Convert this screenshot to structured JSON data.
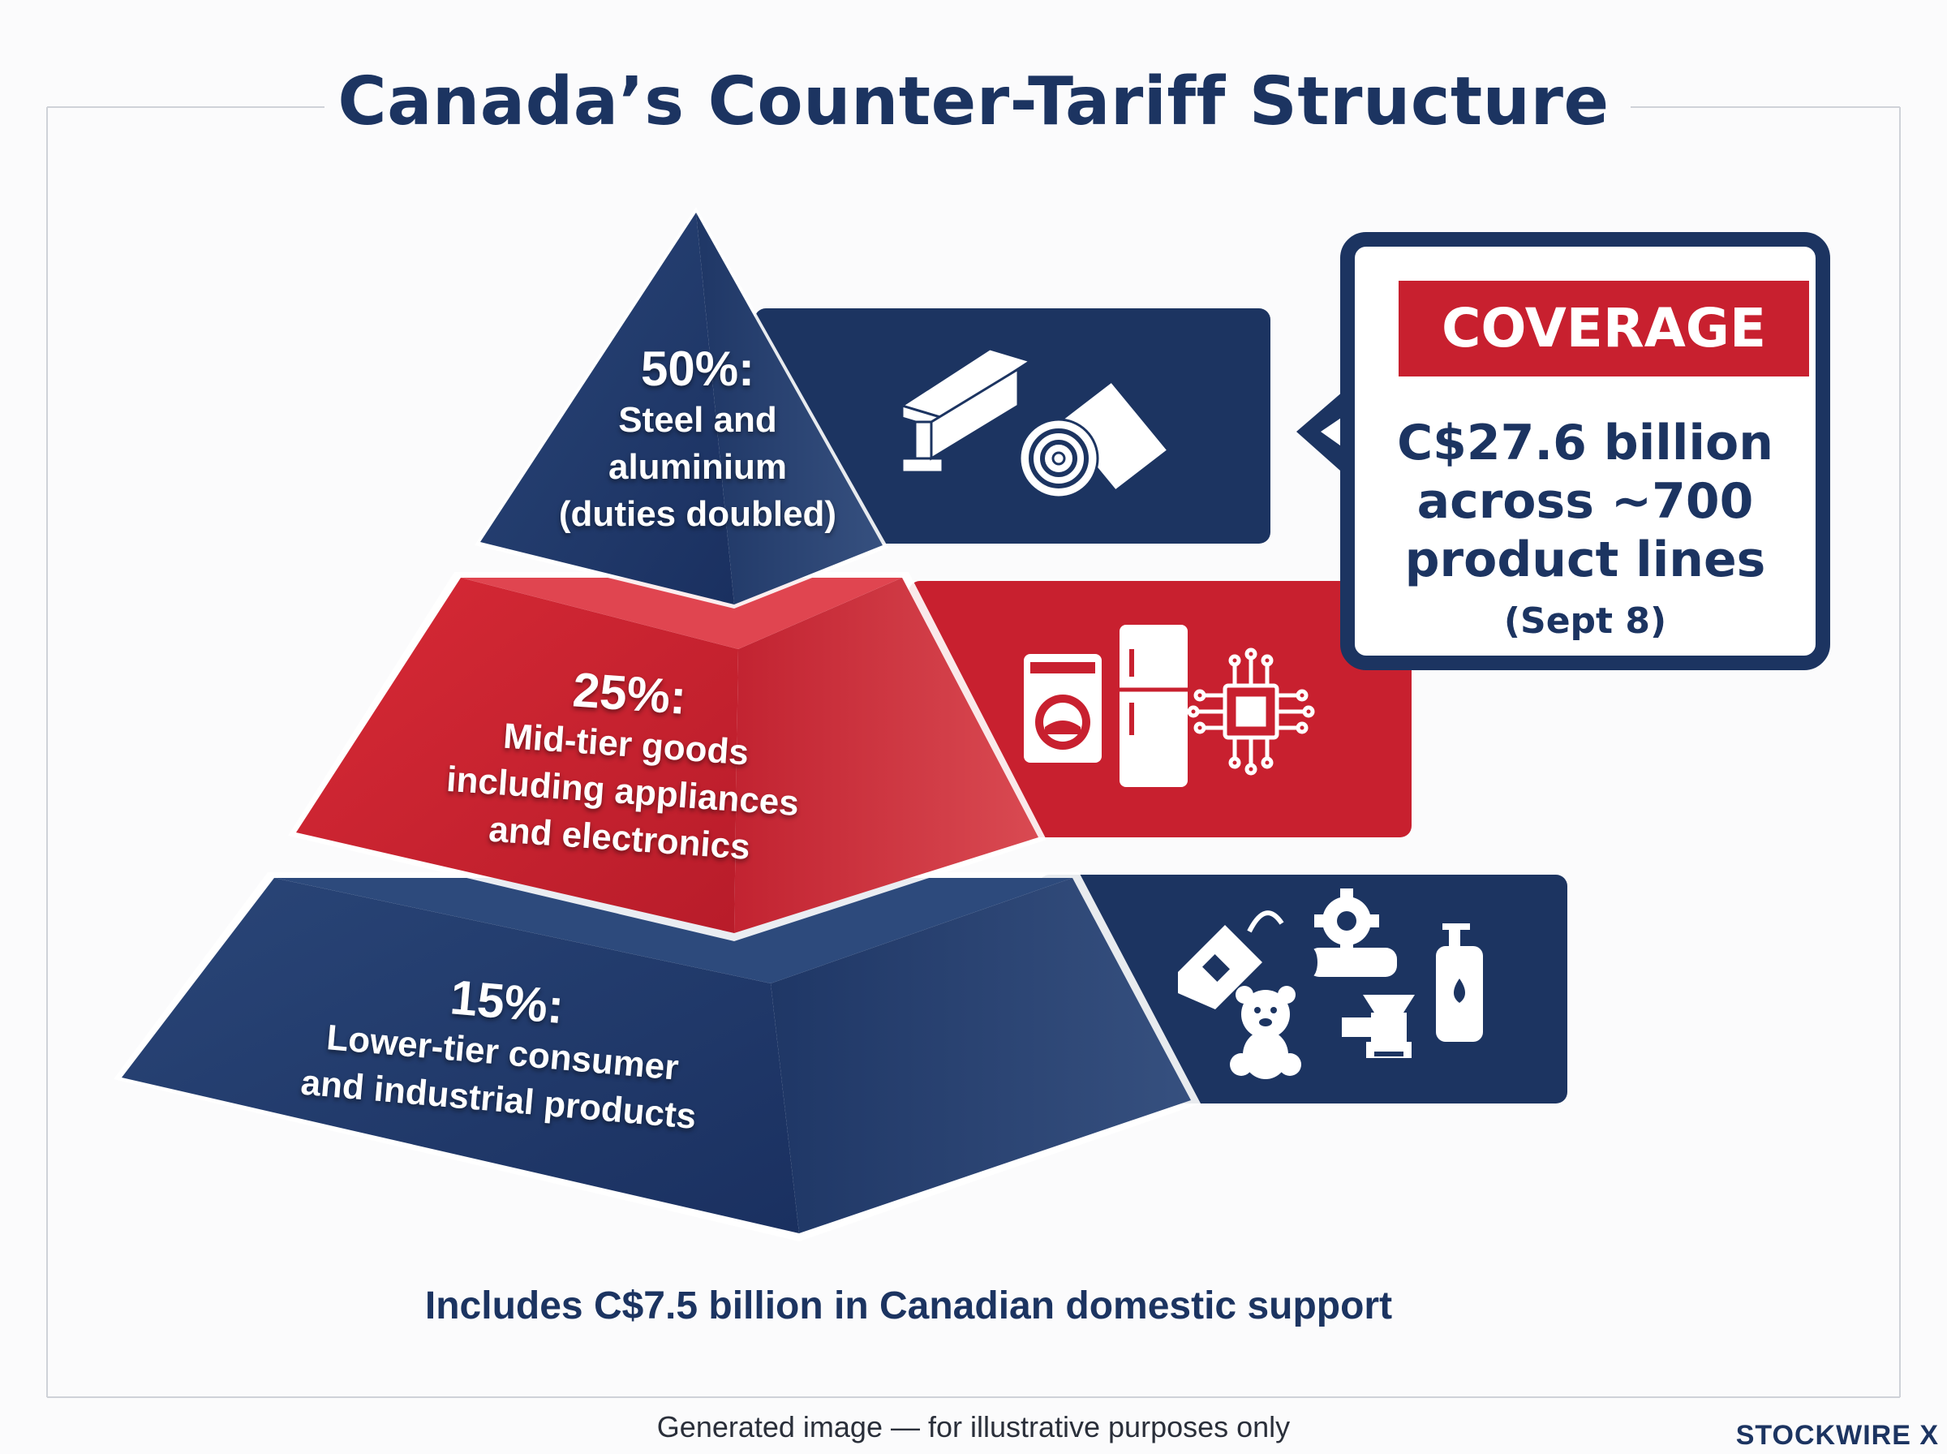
{
  "title": "Canada’s Counter-Tariff Structure",
  "tiers": [
    {
      "percent": "50%:",
      "description": [
        "Steel and",
        "aluminium",
        "(duties doubled)"
      ],
      "color": "#1c3461",
      "icons": [
        "steel-beam-icon",
        "aluminium-roll-icon"
      ]
    },
    {
      "percent": "25%:",
      "description": [
        "Mid-tier goods",
        "including appliances",
        "and electronics"
      ],
      "color": "#c8202f",
      "icons": [
        "washing-machine-icon",
        "refrigerator-icon",
        "microchip-icon"
      ]
    },
    {
      "percent": "15%:",
      "description": [
        "Lower-tier consumer",
        "and industrial products"
      ],
      "color": "#1c3461",
      "icons": [
        "price-tag-icon",
        "gear-icon",
        "teddy-bear-icon",
        "meat-grinder-icon",
        "lotion-bottle-icon"
      ]
    }
  ],
  "coverage": {
    "label": "COVERAGE",
    "amount_lines": [
      "C$27.6 billion",
      "across ~700",
      "product lines"
    ],
    "date": "(Sept 8)"
  },
  "footnote": "Includes C$7.5 billion in Canadian domestic support",
  "disclaimer": "Generated image — for illustrative purposes only",
  "brand": "STOCKWIRE X",
  "colors": {
    "navy": "#1c3461",
    "red": "#c8202f",
    "background": "#fbfbfc"
  }
}
